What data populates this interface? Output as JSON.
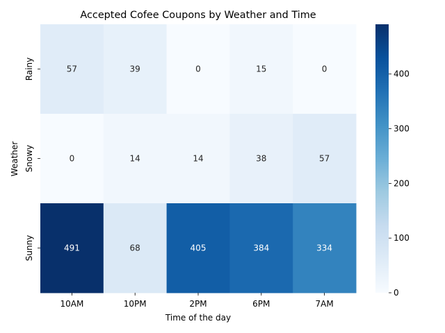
{
  "chart_data": {
    "type": "heatmap",
    "title": "Accepted Cofee Coupons by Weather and Time",
    "xlabel": "Time of the day",
    "ylabel": "Weather",
    "x_categories": [
      "10AM",
      "10PM",
      "2PM",
      "6PM",
      "7AM"
    ],
    "y_categories": [
      "Rainy",
      "Snowy",
      "Sunny"
    ],
    "values": [
      [
        57,
        39,
        0,
        15,
        0
      ],
      [
        0,
        14,
        14,
        38,
        57
      ],
      [
        491,
        68,
        405,
        384,
        334
      ]
    ],
    "colormap": "Blues",
    "vmin": 0,
    "vmax": 491,
    "colorbar_ticks": [
      0,
      100,
      200,
      300,
      400
    ],
    "annotations": true
  }
}
